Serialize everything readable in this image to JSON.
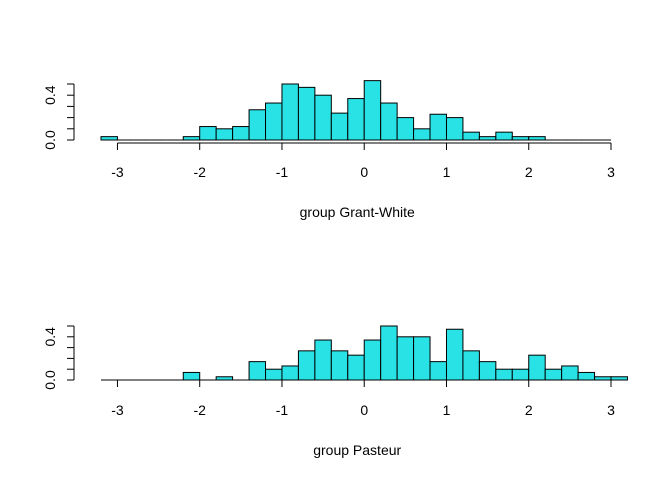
{
  "colors": {
    "bar_fill": "#28E2E5",
    "bar_stroke": "#000000",
    "axis": "#000000",
    "background": "#ffffff"
  },
  "chart_data": [
    {
      "type": "bar",
      "histogram": true,
      "xlabel": "group Grant-White",
      "ylabel": "",
      "xlim": [
        -3.2,
        3.0
      ],
      "ylim": [
        0,
        0.5
      ],
      "x_ticks": [
        "-3",
        "-2",
        "-1",
        "0",
        "1",
        "2",
        "3"
      ],
      "y_ticks": [
        "0.0",
        "0.4"
      ],
      "bin_width": 0.2,
      "bin_start": -3.2,
      "values": [
        0.03,
        0,
        0,
        0,
        0,
        0.03,
        0.12,
        0.1,
        0.12,
        0.27,
        0.33,
        0.5,
        0.47,
        0.4,
        0.24,
        0.37,
        0.53,
        0.33,
        0.2,
        0.1,
        0.23,
        0.2,
        0.07,
        0.03,
        0.07,
        0.03,
        0.03,
        0,
        0,
        0,
        0
      ]
    },
    {
      "type": "bar",
      "histogram": true,
      "xlabel": "group Pasteur",
      "ylabel": "",
      "xlim": [
        -3.2,
        3.0
      ],
      "ylim": [
        0,
        0.5
      ],
      "x_ticks": [
        "-3",
        "-2",
        "-1",
        "0",
        "1",
        "2",
        "3"
      ],
      "y_ticks": [
        "0.0",
        "0.4"
      ],
      "bin_width": 0.2,
      "bin_start": -3.2,
      "values": [
        0,
        0,
        0,
        0,
        0,
        0.07,
        0,
        0.03,
        0,
        0.17,
        0.1,
        0.13,
        0.27,
        0.37,
        0.27,
        0.23,
        0.37,
        0.5,
        0.4,
        0.4,
        0.17,
        0.47,
        0.27,
        0.17,
        0.1,
        0.1,
        0.23,
        0.1,
        0.13,
        0.07,
        0.03,
        0.03
      ]
    }
  ]
}
